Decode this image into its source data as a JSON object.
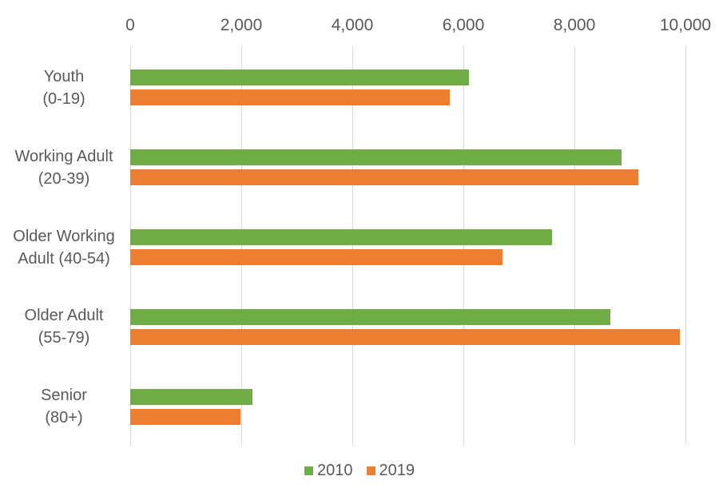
{
  "chart_data": {
    "type": "bar",
    "orientation": "horizontal",
    "title": "",
    "xlabel": "",
    "ylabel": "",
    "grid": true,
    "x_axis": {
      "position": "top",
      "min": 0,
      "max": 10000,
      "tick_interval": 2000,
      "tick_labels": [
        "0",
        "2,000",
        "4,000",
        "6,000",
        "8,000",
        "10,000"
      ]
    },
    "categories": [
      {
        "lines": [
          "Youth",
          "(0-19)"
        ]
      },
      {
        "lines": [
          "Working Adult",
          "(20-39)"
        ]
      },
      {
        "lines": [
          "Older Working",
          "Adult (40-54)"
        ]
      },
      {
        "lines": [
          "Older Adult",
          "(55-79)"
        ]
      },
      {
        "lines": [
          "Senior",
          "(80+)"
        ]
      }
    ],
    "series": [
      {
        "name": "2010",
        "color": "#70AD47",
        "values": [
          6100,
          8850,
          7600,
          8650,
          2200
        ]
      },
      {
        "name": "2019",
        "color": "#ED7D31",
        "values": [
          5750,
          9150,
          6700,
          9900,
          1980
        ]
      }
    ],
    "legend": {
      "position": "bottom",
      "entries": [
        "2010",
        "2019"
      ]
    }
  },
  "colors": {
    "background": "#FFFFFF",
    "gridline": "#D9D9D9",
    "text": "#595959",
    "series_2010": "#70AD47",
    "series_2019": "#ED7D31"
  }
}
